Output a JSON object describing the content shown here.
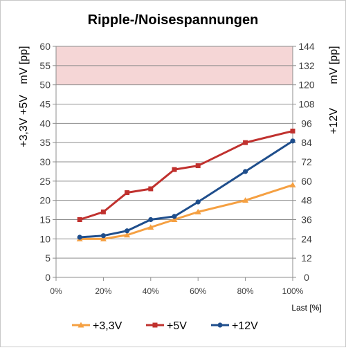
{
  "chart_data": {
    "type": "line",
    "title": "Ripple-/Noisespannungen",
    "xlabel": "Last [%]",
    "ylabel_left_top": "mV [pp]",
    "ylabel_left_bottom": "+3,3V +5V",
    "ylabel_right_top": "mV [pp]",
    "ylabel_right_bottom": "+12V",
    "x": [
      10,
      20,
      30,
      40,
      50,
      60,
      80,
      100
    ],
    "xlim": [
      0,
      100
    ],
    "xticks": [
      0,
      20,
      40,
      60,
      80,
      100
    ],
    "xtick_labels": [
      "0%",
      "20%",
      "40%",
      "60%",
      "80%",
      "100%"
    ],
    "ylim": [
      0,
      60
    ],
    "yticks": [
      0,
      5,
      10,
      15,
      20,
      25,
      30,
      35,
      40,
      45,
      50,
      55,
      60
    ],
    "ytick_labels": [
      "0",
      "5",
      "10",
      "15",
      "20",
      "25",
      "30",
      "35",
      "40",
      "45",
      "50",
      "55",
      "60"
    ],
    "y2lim": [
      0,
      144
    ],
    "y2ticks": [
      0,
      12,
      24,
      36,
      48,
      60,
      72,
      84,
      96,
      108,
      120,
      132,
      144
    ],
    "y2tick_labels": [
      "0",
      "12",
      "24",
      "36",
      "48",
      "60",
      "72",
      "84",
      "96",
      "108",
      "120",
      "132",
      "144"
    ],
    "limit_band": {
      "from": 50,
      "to": 60,
      "color": "#f5d6d6"
    },
    "grid": true,
    "legend": "bottom",
    "series": [
      {
        "name": "+3,3V",
        "axis": "left",
        "color": "#f5a042",
        "marker": "triangle",
        "values": [
          10,
          10,
          11,
          13,
          15,
          17,
          20,
          24
        ]
      },
      {
        "name": "+5V",
        "axis": "left",
        "color": "#c0312e",
        "marker": "square",
        "values": [
          15,
          17,
          22,
          23,
          28,
          29,
          35,
          38
        ]
      },
      {
        "name": "+12V",
        "axis": "right",
        "color": "#1f4e8c",
        "marker": "circle",
        "values": [
          25,
          26,
          29,
          36,
          38,
          47,
          66,
          85
        ]
      }
    ]
  }
}
